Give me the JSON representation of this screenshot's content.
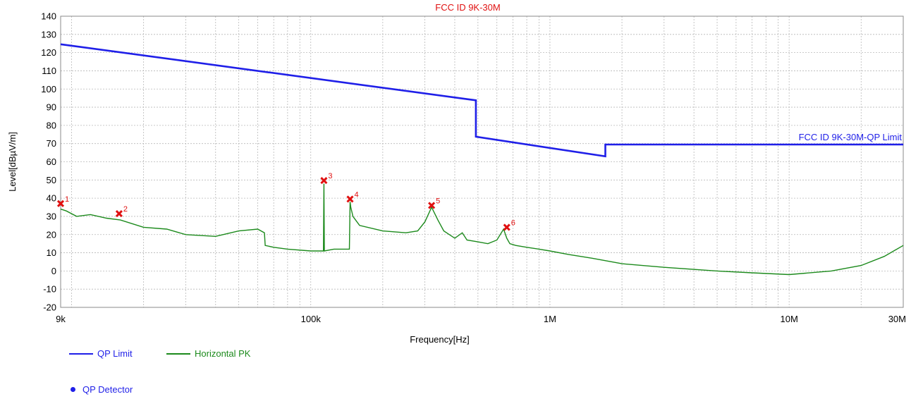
{
  "chart_data": {
    "type": "line",
    "title": "FCC ID  9K-30M",
    "xlabel": "Frequency[Hz]",
    "ylabel": "Level[dBµV/m]",
    "xscale": "log",
    "xlim": [
      9000,
      30000000
    ],
    "ylim": [
      -20,
      140
    ],
    "x_ticks": [
      {
        "value": 9000,
        "label": "9k"
      },
      {
        "value": 100000,
        "label": "100k"
      },
      {
        "value": 1000000,
        "label": "1M"
      },
      {
        "value": 10000000,
        "label": "10M"
      },
      {
        "value": 30000000,
        "label": "30M"
      }
    ],
    "y_ticks": [
      -20,
      -10,
      0,
      10,
      20,
      30,
      40,
      50,
      60,
      70,
      80,
      90,
      100,
      110,
      120,
      130,
      140
    ],
    "grid": true,
    "series": [
      {
        "name": "QP Limit",
        "color": "#1f1fe8",
        "line_label": "FCC ID  9K-30M-QP Limit",
        "x": [
          9000,
          490000,
          490000,
          1705000,
          1705000,
          30000000
        ],
        "y": [
          124.6,
          93.8,
          73.8,
          63.0,
          69.5,
          69.5
        ]
      },
      {
        "name": "Horizontal PK",
        "color": "#1c8a1c",
        "x": [
          9000,
          9500,
          10500,
          12000,
          14000,
          16000,
          20000,
          25000,
          30000,
          40000,
          50000,
          60000,
          64000,
          64500,
          70000,
          80000,
          100000,
          113000,
          113500,
          114000,
          125000,
          140000,
          145000,
          146000,
          147000,
          150000,
          160000,
          200000,
          250000,
          280000,
          300000,
          320000,
          340000,
          360000,
          400000,
          430000,
          450000,
          500000,
          550000,
          600000,
          640000,
          660000,
          680000,
          720000,
          800000,
          900000,
          1000000,
          1200000,
          1500000,
          2000000,
          3000000,
          5000000,
          7000000,
          10000000,
          15000000,
          20000000,
          25000000,
          30000000
        ],
        "y": [
          34,
          33,
          30,
          31,
          29,
          28,
          24,
          23,
          20,
          19,
          22,
          23,
          21,
          14,
          13,
          12,
          11,
          11,
          48,
          11,
          12,
          12,
          12,
          38,
          35,
          30,
          25,
          22,
          21,
          22,
          27,
          35,
          28,
          22,
          18,
          21,
          17,
          16,
          15,
          17,
          23,
          18,
          15,
          14,
          13,
          12,
          11,
          9,
          7,
          4,
          2,
          0,
          -1,
          -2,
          0,
          3,
          8,
          14
        ]
      }
    ],
    "markers": [
      {
        "label": "1",
        "x": 9000,
        "y": 37
      },
      {
        "label": "2",
        "x": 15800,
        "y": 31.5
      },
      {
        "label": "3",
        "x": 113500,
        "y": 49.7
      },
      {
        "label": "4",
        "x": 146000,
        "y": 39.5
      },
      {
        "label": "5",
        "x": 320000,
        "y": 36
      },
      {
        "label": "6",
        "x": 660000,
        "y": 24
      }
    ],
    "marker_color": "#e01010",
    "legend": [
      {
        "label": "QP Limit",
        "color": "#1f1fe8",
        "kind": "line"
      },
      {
        "label": "Horizontal PK",
        "color": "#1c8a1c",
        "kind": "line"
      },
      {
        "label": "QP Detector",
        "color": "#1f1fe8",
        "kind": "dot"
      }
    ],
    "legend_position": "bottom-left"
  }
}
